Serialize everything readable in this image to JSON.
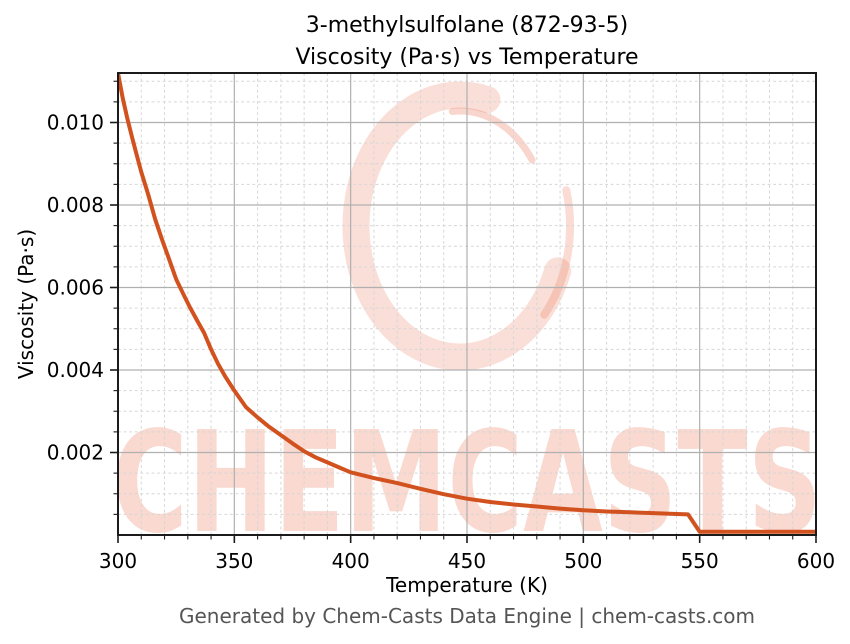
{
  "chart": {
    "title_line1": "3-methylsulfolane (872-93-5)",
    "title_line2": "Viscosity (Pa·s) vs Temperature",
    "xlabel": "Temperature (K)",
    "ylabel": "Viscosity (Pa·s)"
  },
  "watermark": {
    "text": "CHEMCASTS",
    "logo_icon": "chemcasts-ring-logo",
    "color": "#e8603c"
  },
  "footer": {
    "text": "Generated by Chem-Casts Data Engine | chem-casts.com"
  },
  "chart_data": {
    "type": "line",
    "title": "3-methylsulfolane (872-93-5) — Viscosity (Pa·s) vs Temperature",
    "xlabel": "Temperature (K)",
    "ylabel": "Viscosity (Pa·s)",
    "xlim": [
      300,
      600
    ],
    "ylim": [
      0,
      0.0112
    ],
    "grid": true,
    "legend": false,
    "x_ticks": [
      {
        "v": 300,
        "label": "300"
      },
      {
        "v": 350,
        "label": "350"
      },
      {
        "v": 400,
        "label": "400"
      },
      {
        "v": 450,
        "label": "450"
      },
      {
        "v": 500,
        "label": "500"
      },
      {
        "v": 550,
        "label": "550"
      },
      {
        "v": 600,
        "label": "600"
      }
    ],
    "y_ticks": [
      {
        "v": 0.002,
        "label": "0.002"
      },
      {
        "v": 0.004,
        "label": "0.004"
      },
      {
        "v": 0.006,
        "label": "0.006"
      },
      {
        "v": 0.008,
        "label": "0.008"
      },
      {
        "v": 0.01,
        "label": "0.010"
      }
    ],
    "x_minor_step": 10,
    "y_minor_step": 0.0005,
    "colors": {
      "curve": "#d2521f",
      "major_grid": "#b0b0b0",
      "minor_grid": "#d6d6d6",
      "spine": "#1b1b1b",
      "tick_text": "#000000"
    },
    "series": [
      {
        "name": "viscosity",
        "color": "#d2521f",
        "points": [
          [
            300,
            0.0112
          ],
          [
            302,
            0.0106
          ],
          [
            304,
            0.0101
          ],
          [
            306,
            0.00965
          ],
          [
            308,
            0.00922
          ],
          [
            310,
            0.0088
          ],
          [
            313,
            0.00825
          ],
          [
            316,
            0.00765
          ],
          [
            319,
            0.00715
          ],
          [
            322,
            0.00668
          ],
          [
            325,
            0.0062
          ],
          [
            328,
            0.00585
          ],
          [
            331,
            0.00551
          ],
          [
            334,
            0.0052
          ],
          [
            337,
            0.0049
          ],
          [
            340,
            0.0045
          ],
          [
            343,
            0.00415
          ],
          [
            346,
            0.00385
          ],
          [
            350,
            0.0035
          ],
          [
            355,
            0.0031
          ],
          [
            360,
            0.00285
          ],
          [
            365,
            0.00262
          ],
          [
            370,
            0.00242
          ],
          [
            375,
            0.00222
          ],
          [
            380,
            0.00203
          ],
          [
            385,
            0.00188
          ],
          [
            390,
            0.00176
          ],
          [
            395,
            0.00164
          ],
          [
            400,
            0.00152
          ],
          [
            410,
            0.00138
          ],
          [
            420,
            0.00126
          ],
          [
            430,
            0.00112
          ],
          [
            440,
            0.00099
          ],
          [
            450,
            0.00088
          ],
          [
            460,
            0.0008
          ],
          [
            470,
            0.00074
          ],
          [
            480,
            0.00069
          ],
          [
            490,
            0.00064
          ],
          [
            500,
            0.0006
          ],
          [
            510,
            0.00057
          ],
          [
            520,
            0.00055
          ],
          [
            530,
            0.00053
          ],
          [
            540,
            0.00051
          ],
          [
            545,
            0.0005
          ],
          [
            550,
            8e-05
          ],
          [
            560,
            8e-05
          ],
          [
            570,
            8e-05
          ],
          [
            580,
            8e-05
          ],
          [
            590,
            8e-05
          ],
          [
            600,
            8e-05
          ]
        ]
      }
    ]
  }
}
